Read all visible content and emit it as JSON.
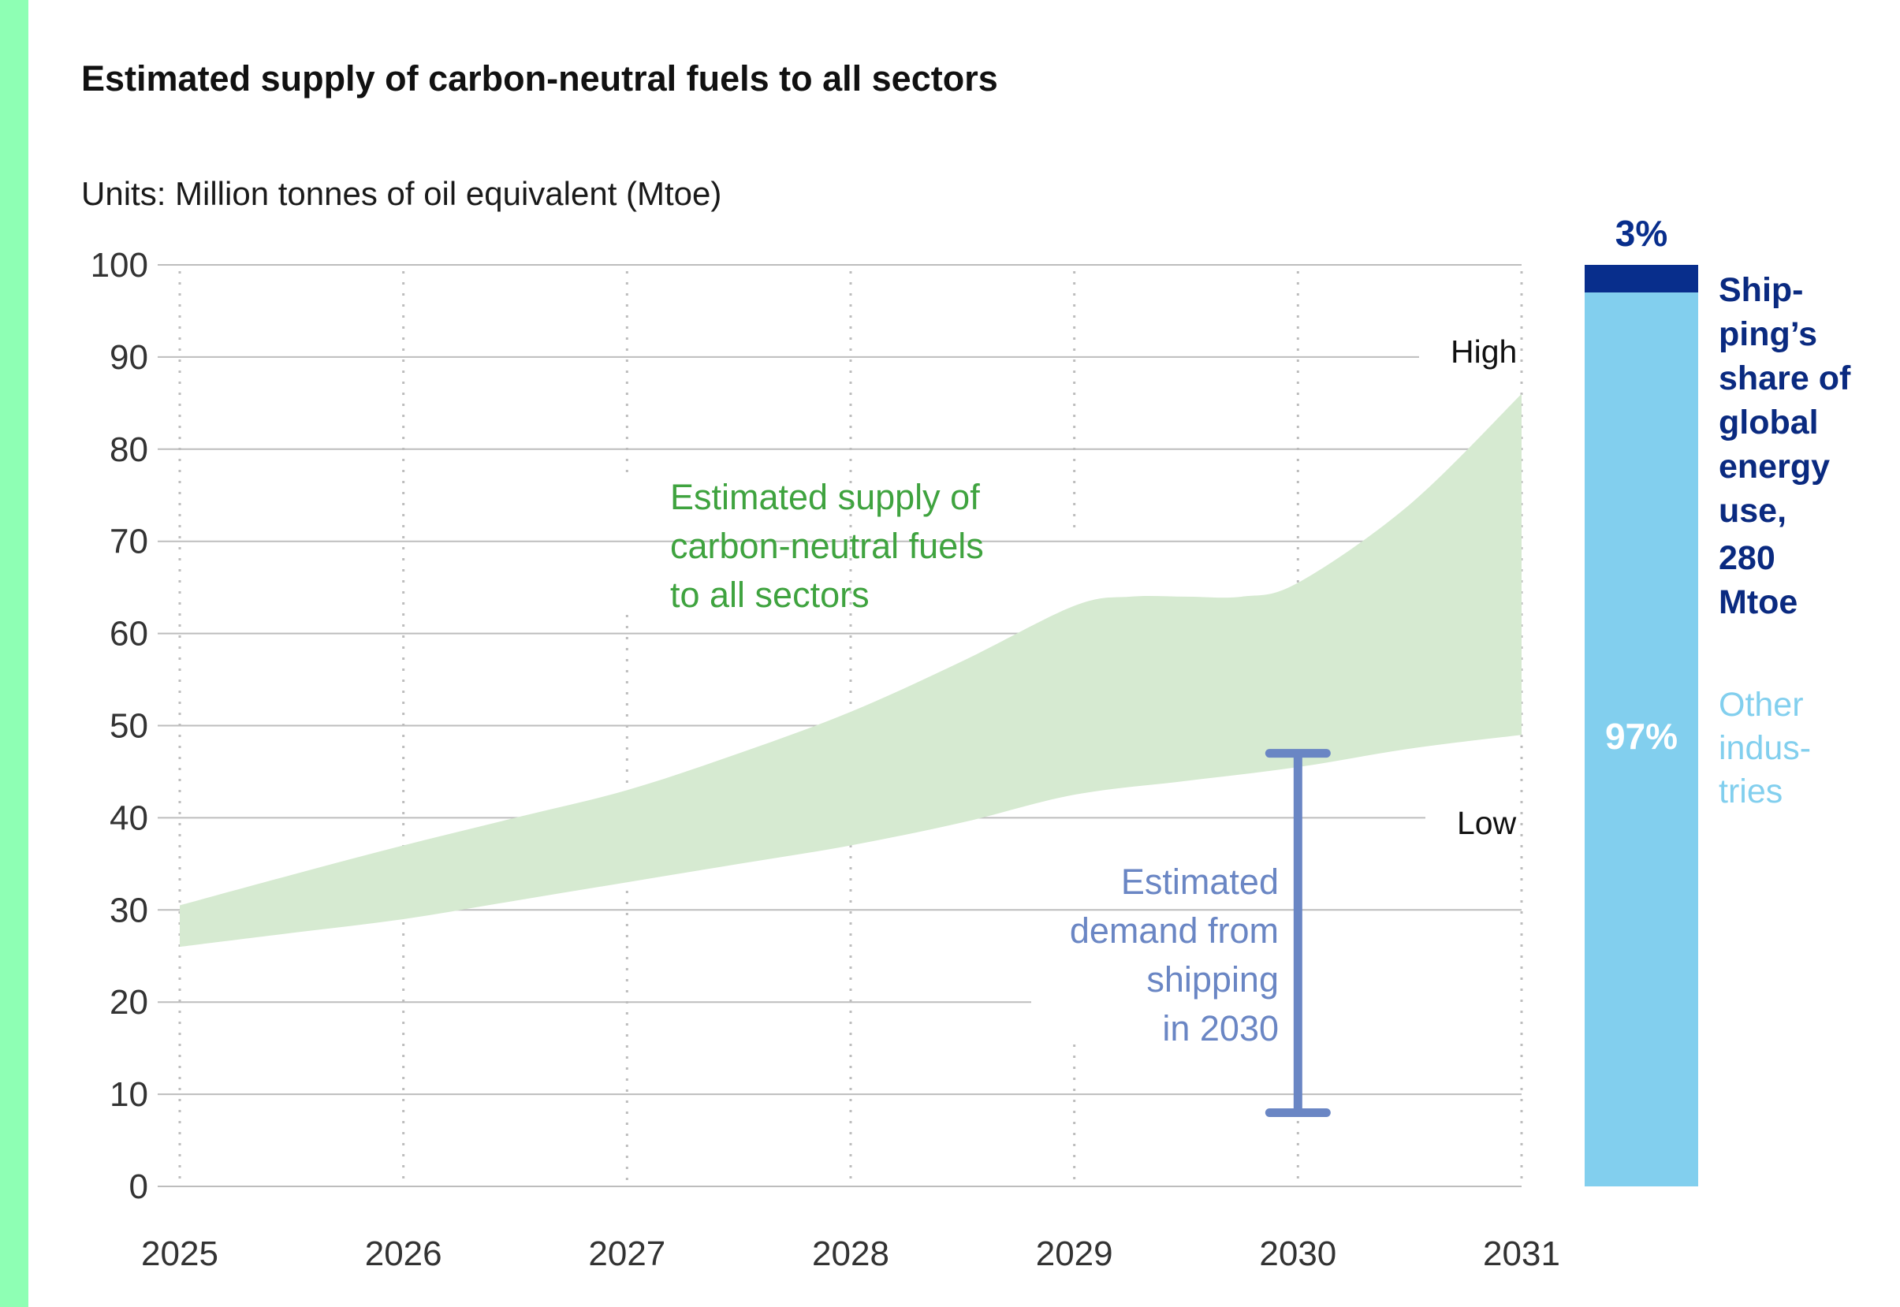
{
  "title": "Estimated supply of carbon-neutral fuels to all sectors",
  "units": "Units: Million tonnes of oil equivalent (Mtoe)",
  "colors": {
    "accent_strip": "#8effb4",
    "supply_band": "#d6ead1",
    "demand_bar": "#6a86c4",
    "shipping_share": "#082e8c",
    "other_share": "#82cfee",
    "grid": "#bdbdbd"
  },
  "chart_data": [
    {
      "type": "area",
      "title": "Estimated supply of carbon-neutral fuels to all sectors",
      "ylabel": "Million tonnes of oil equivalent (Mtoe)",
      "xlim": [
        2025,
        2031
      ],
      "ylim": [
        0,
        100
      ],
      "x_ticks": [
        "2025",
        "2026",
        "2027",
        "2028",
        "2029",
        "2030",
        "2031"
      ],
      "y_ticks": [
        "0",
        "10",
        "20",
        "30",
        "40",
        "50",
        "60",
        "70",
        "80",
        "90",
        "100"
      ],
      "grid": true,
      "series": [
        {
          "name": "Estimated supply of carbon-neutral fuels to all sectors (high)",
          "x": [
            2025,
            2025.5,
            2026,
            2026.5,
            2027,
            2027.5,
            2028,
            2028.5,
            2029,
            2029.25,
            2029.5,
            2029.75,
            2030,
            2030.5,
            2031
          ],
          "values": [
            30.5,
            33.8,
            37.0,
            40.0,
            43.0,
            47.0,
            51.5,
            57.0,
            63.0,
            64.0,
            64.0,
            64.0,
            65.5,
            74.0,
            86.0
          ]
        },
        {
          "name": "Estimated supply of carbon-neutral fuels to all sectors (low)",
          "x": [
            2025,
            2025.5,
            2026,
            2026.5,
            2027,
            2027.5,
            2028,
            2028.5,
            2029,
            2029.5,
            2030,
            2030.5,
            2031
          ],
          "values": [
            26.0,
            27.5,
            29.0,
            31.0,
            33.0,
            35.0,
            37.0,
            39.5,
            42.5,
            44.0,
            45.5,
            47.5,
            49.0
          ]
        }
      ],
      "annotations": {
        "high_label": "High",
        "low_label": "Low",
        "supply_label": [
          "Estimated supply of",
          "carbon-neutral fuels",
          "to all sectors"
        ],
        "demand_label": [
          "Estimated",
          "demand from",
          "shipping",
          "in 2030"
        ]
      },
      "demand_range": {
        "x": 2030,
        "low": 8,
        "high": 47
      }
    },
    {
      "type": "bar",
      "title": "Shipping's share of global energy use, 280 Mtoe",
      "categories": [
        "Shipping",
        "Other industries"
      ],
      "values": [
        3,
        97
      ],
      "value_labels": [
        "3%",
        "97%"
      ],
      "shipping_label": [
        "Ship-",
        "ping’s",
        "share of",
        "global",
        "energy",
        "use,"
      ],
      "shipping_total": [
        "280",
        "Mtoe"
      ],
      "other_label": [
        "Other",
        "indus-",
        "tries"
      ]
    }
  ]
}
